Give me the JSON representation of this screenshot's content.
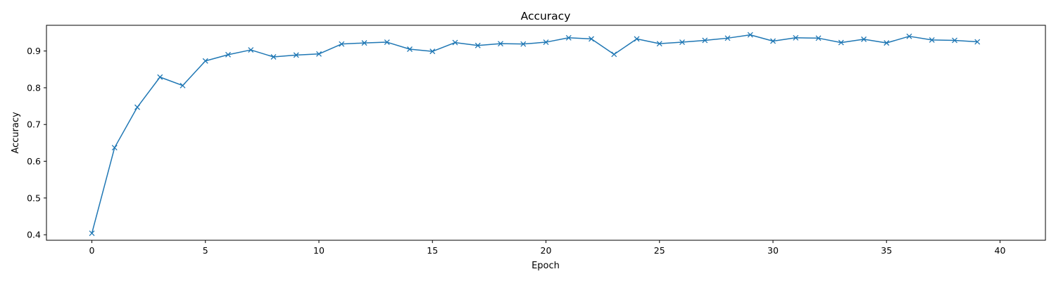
{
  "chart_data": {
    "type": "line",
    "title": "Accuracy",
    "xlabel": "Epoch",
    "ylabel": "Accuracy",
    "xlim": [
      -2,
      42
    ],
    "ylim": [
      0.385,
      0.97
    ],
    "xticks": [
      0,
      5,
      10,
      15,
      20,
      25,
      30,
      35,
      40
    ],
    "yticks": [
      0.4,
      0.5,
      0.6,
      0.7,
      0.8,
      0.9
    ],
    "grid": false,
    "legend": "none",
    "marker": "x",
    "series": [
      {
        "color": "#1f77b4",
        "x": [
          0,
          1,
          2,
          3,
          4,
          5,
          6,
          7,
          8,
          9,
          10,
          11,
          12,
          13,
          14,
          15,
          16,
          17,
          18,
          19,
          20,
          21,
          22,
          23,
          24,
          25,
          26,
          27,
          28,
          29,
          30,
          31,
          32,
          33,
          34,
          35,
          36,
          37,
          38,
          39
        ],
        "values": [
          0.404,
          0.637,
          0.747,
          0.829,
          0.806,
          0.873,
          0.89,
          0.903,
          0.884,
          0.889,
          0.892,
          0.919,
          0.922,
          0.924,
          0.905,
          0.899,
          0.923,
          0.915,
          0.92,
          0.919,
          0.924,
          0.936,
          0.933,
          0.891,
          0.933,
          0.92,
          0.924,
          0.929,
          0.935,
          0.944,
          0.927,
          0.936,
          0.935,
          0.923,
          0.932,
          0.922,
          0.94,
          0.93,
          0.929,
          0.925
        ]
      }
    ]
  }
}
